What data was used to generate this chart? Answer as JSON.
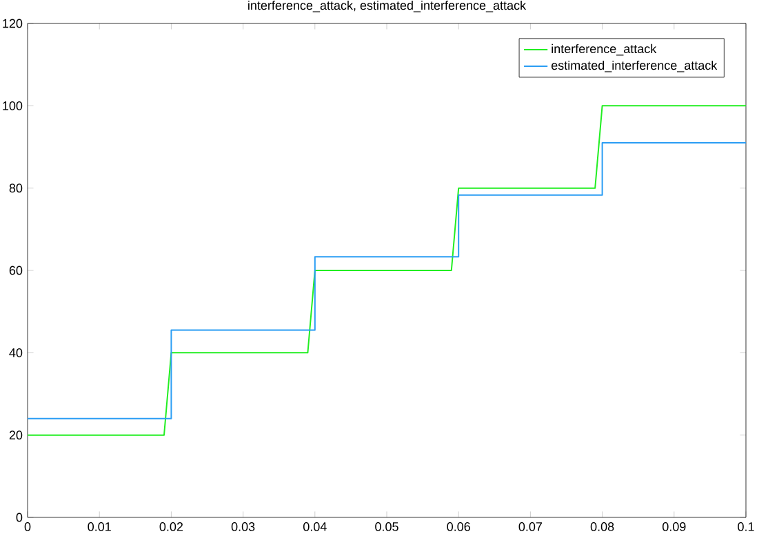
{
  "chart_data": {
    "type": "line",
    "title": "interference_attack, estimated_interference_attack",
    "series": [
      {
        "name": "interference_attack",
        "color": "#22ee22",
        "x": [
          0,
          0.019,
          0.02,
          0.039,
          0.04,
          0.059,
          0.06,
          0.079,
          0.08,
          0.1
        ],
        "values": [
          20,
          20,
          40,
          40,
          60,
          60,
          80,
          80,
          100,
          100
        ]
      },
      {
        "name": "estimated_interference_attack",
        "type": "step",
        "color": "#2a9df4",
        "x": [
          0,
          0.02,
          0.04,
          0.06,
          0.08,
          0.1
        ],
        "values": [
          24,
          45.5,
          63.3,
          78.3,
          91,
          91
        ]
      }
    ],
    "xlim": [
      0,
      0.1
    ],
    "xticks": [
      0,
      0.01,
      0.02,
      0.03,
      0.04,
      0.05,
      0.06,
      0.07,
      0.08,
      0.09,
      0.1
    ],
    "ylim": [
      0,
      120
    ],
    "yticks": [
      0,
      20,
      40,
      60,
      80,
      100,
      120
    ],
    "legend": "top right",
    "grid": false
  }
}
